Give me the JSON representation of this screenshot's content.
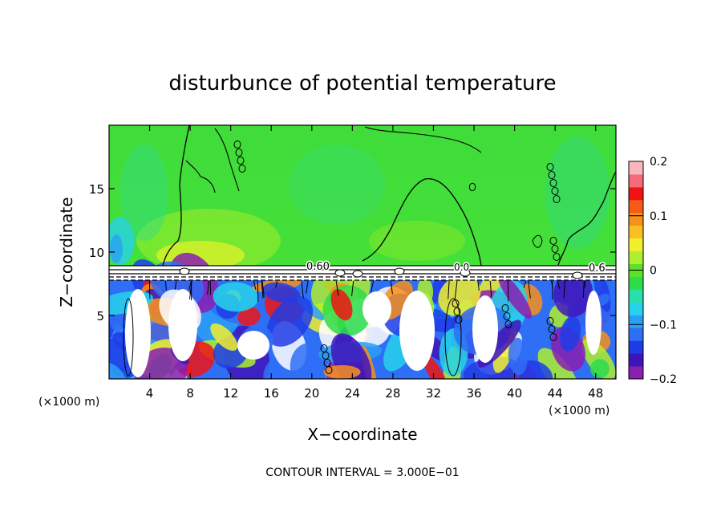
{
  "chart_data": {
    "type": "heatmap",
    "title": "disturbunce of potential temperature",
    "xlabel": "X−coordinate",
    "ylabel": "Z−coordinate",
    "x_unit_left": "(×1000 m)",
    "x_unit_right": "(×1000 m)",
    "footer": "CONTOUR INTERVAL = 3.000E−01",
    "xlim": [
      0,
      50
    ],
    "ylim": [
      0,
      20
    ],
    "x_ticks": [
      4,
      8,
      12,
      16,
      20,
      24,
      28,
      32,
      36,
      40,
      44,
      48
    ],
    "y_ticks": [
      5,
      10,
      15
    ],
    "x_tick_labels": [
      "4",
      "8",
      "12",
      "16",
      "20",
      "24",
      "28",
      "32",
      "36",
      "40",
      "44",
      "48"
    ],
    "y_tick_labels": [
      "5",
      "10",
      "15"
    ],
    "colorbar": {
      "range": [
        -0.2,
        0.2
      ],
      "ticks": [
        0.2,
        0.1,
        0,
        -0.1,
        -0.2
      ],
      "tick_labels": [
        "0.2",
        "0.1",
        "0",
        "−0.1",
        "−0.2"
      ],
      "colors": [
        "#8a1fb0",
        "#3f14b8",
        "#1e3ce6",
        "#2f6ff6",
        "#2aa0f5",
        "#27d2ea",
        "#28e0a8",
        "#2edc4a",
        "#5ee02a",
        "#aef02e",
        "#f2f02c",
        "#f8c020",
        "#f7901c",
        "#f55a18",
        "#f01414",
        "#f46c7a",
        "#fbb6bc"
      ]
    },
    "contour_labels": [
      "0.60",
      "0.0",
      "0.6"
    ],
    "grid": false
  }
}
